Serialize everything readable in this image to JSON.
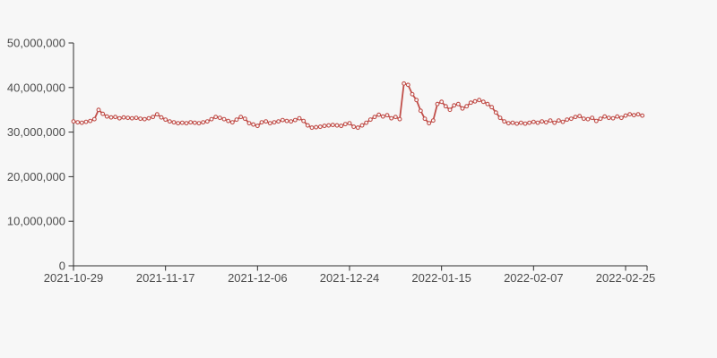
{
  "page": {
    "background_color": "#f7f7f7",
    "axis_color": "#2f2f2f",
    "label_color": "#4d4d4d"
  },
  "chart_data": {
    "type": "line",
    "title": "",
    "xlabel": "",
    "ylabel": "",
    "grid": false,
    "legend": null,
    "series_name": "series-1",
    "series_color": "#c14f4a",
    "marker_style": "open-circle",
    "marker_fill": "#fafafa",
    "ylim": [
      0,
      50000000
    ],
    "y_ticks": [
      0,
      10000000,
      20000000,
      30000000,
      40000000,
      50000000
    ],
    "y_tick_labels": [
      "0",
      "10,000,000",
      "20,000,000",
      "30,000,000",
      "40,000,000",
      "50,000,000"
    ],
    "x_tick_labels": [
      "2021-10-29",
      "2021-11-17",
      "2021-12-06",
      "2021-12-24",
      "2022-01-15",
      "2022-02-07",
      "2022-02-25"
    ],
    "x_tick_indices": [
      0,
      22,
      44,
      66,
      88,
      110,
      132
    ],
    "values": [
      32400000,
      32200000,
      32100000,
      32300000,
      32500000,
      32900000,
      35000000,
      34100000,
      33500000,
      33300000,
      33400000,
      33100000,
      33300000,
      33200000,
      33100000,
      33200000,
      33000000,
      32900000,
      33100000,
      33400000,
      34000000,
      33300000,
      32800000,
      32400000,
      32200000,
      32000000,
      32100000,
      32000000,
      32200000,
      32100000,
      32000000,
      32200000,
      32400000,
      32900000,
      33400000,
      33200000,
      32900000,
      32500000,
      32200000,
      32800000,
      33400000,
      33000000,
      32000000,
      31700000,
      31400000,
      32200000,
      32400000,
      32000000,
      32200000,
      32400000,
      32700000,
      32500000,
      32400000,
      32700000,
      33100000,
      32500000,
      31500000,
      31000000,
      31100000,
      31200000,
      31400000,
      31500000,
      31600000,
      31500000,
      31400000,
      31800000,
      32000000,
      31200000,
      31000000,
      31500000,
      32100000,
      32800000,
      33400000,
      33900000,
      33500000,
      33800000,
      33100000,
      33400000,
      32900000,
      40900000,
      40600000,
      38500000,
      37200000,
      34800000,
      33000000,
      32000000,
      32600000,
      36300000,
      36800000,
      35800000,
      35000000,
      36000000,
      36300000,
      35300000,
      35800000,
      36600000,
      36900000,
      37200000,
      36800000,
      36300000,
      35600000,
      34400000,
      33200000,
      32400000,
      32000000,
      32100000,
      31900000,
      32100000,
      31900000,
      32100000,
      32300000,
      32100000,
      32400000,
      32200000,
      32600000,
      32100000,
      32600000,
      32300000,
      32800000,
      33000000,
      33400000,
      33600000,
      33000000,
      32900000,
      33200000,
      32500000,
      33000000,
      33500000,
      33200000,
      33100000,
      33500000,
      33200000,
      33700000,
      34000000,
      33800000,
      34000000,
      33700000
    ]
  }
}
